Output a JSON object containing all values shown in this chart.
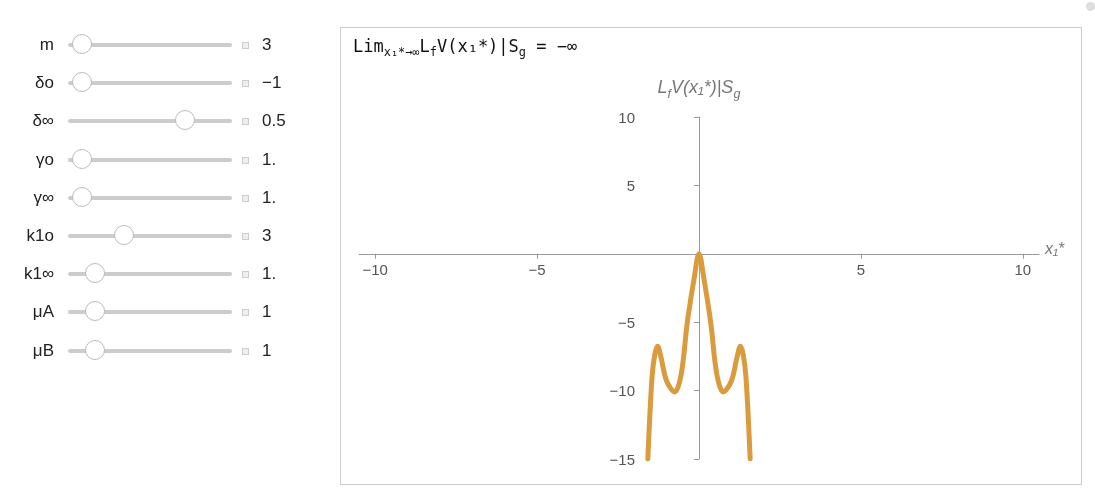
{
  "chart_data": [
    {
      "type": "other",
      "annotations": [
        "m",
        "3",
        "δo",
        "−1",
        "δ∞",
        "0.5",
        "γo",
        "1.",
        "γ∞",
        "1.",
        "k1o",
        "3",
        "k1∞",
        "1.",
        "μA",
        "1",
        "μB",
        "1"
      ]
    },
    {
      "type": "line",
      "title": "Lim$_{x₁*→∞}$L$_{f}$V(x₁*)|S$_{g}$ = −∞",
      "xlabel": "x₁*",
      "ylabel": "L$_{f}$V(x₁*)|S$_{g}$",
      "x": [
        -1.58,
        -1.45,
        -1.36,
        -1.28,
        -1.18,
        -1.0,
        -0.75,
        -0.55,
        -0.36,
        -0.15,
        0,
        0.15,
        0.36,
        0.55,
        0.75,
        1.0,
        1.18,
        1.28,
        1.36,
        1.45,
        1.58
      ],
      "series": [
        {
          "color": "#d99b3c",
          "values": [
            -15,
            -9,
            -7.3,
            -6.75,
            -7.5,
            -9.3,
            -10.1,
            -8.8,
            -5,
            -1.8,
            0,
            -1.8,
            -5,
            -8.8,
            -10.1,
            -9.3,
            -7.5,
            -6.75,
            -7.3,
            -9,
            -15
          ]
        }
      ],
      "xlim": [
        -10.5,
        10.5
      ],
      "xticks": [
        -10,
        -5,
        5,
        10
      ],
      "ylim": [
        -15,
        10
      ],
      "yticks": [
        -15,
        -10,
        -5,
        5,
        10
      ],
      "grid": false
    }
  ]
}
